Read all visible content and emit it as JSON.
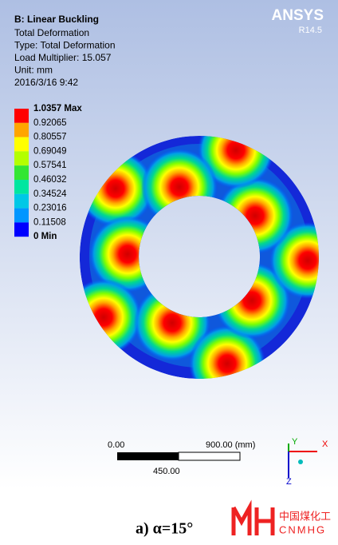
{
  "header": {
    "title": "B: Linear Buckling",
    "lines": [
      "Total Deformation",
      "Type: Total Deformation",
      "Load Multiplier: 15.057",
      "Unit: mm",
      "2016/3/16 9:42"
    ]
  },
  "brand": {
    "name": "ANSYS",
    "version": "R14.5"
  },
  "legend": {
    "labels": [
      "1.0357 Max",
      "0.92065",
      "0.80557",
      "0.69049",
      "0.57541",
      "0.46032",
      "0.34524",
      "0.23016",
      "0.11508",
      "0 Min"
    ],
    "colors": [
      "#ff0000",
      "#ffa500",
      "#ffff00",
      "#b4ff00",
      "#33e633",
      "#00e6a0",
      "#00c8e6",
      "#0096ff",
      "#0000ff"
    ]
  },
  "scale_bar": {
    "start": "0.00",
    "end": "900.00 (mm)",
    "middle": "450.00"
  },
  "triad": {
    "x": "X",
    "y": "Y",
    "z": "Z"
  },
  "caption": "a) α=15°",
  "logo": {
    "cn": "中国煤化工",
    "en": "CNMHG"
  }
}
